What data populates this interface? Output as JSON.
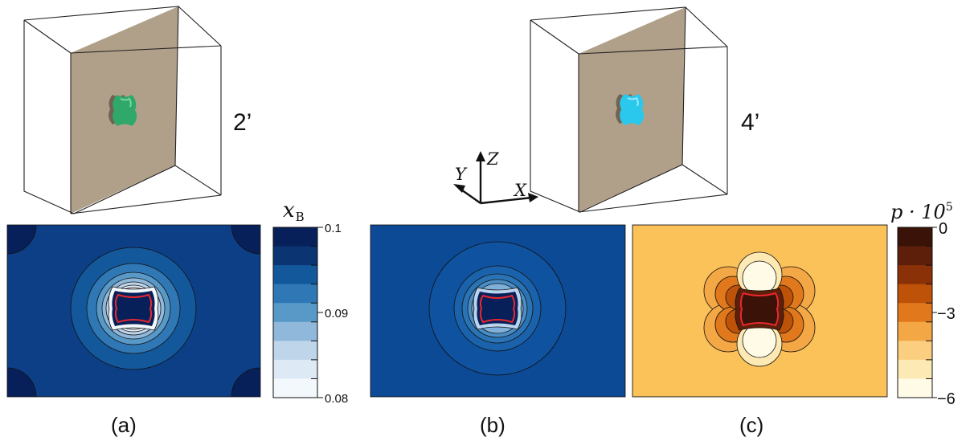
{
  "labels": {
    "view_a": "2’",
    "view_b": "4’",
    "panel_a": "(a)",
    "panel_b": "(b)",
    "panel_c": "(c)"
  },
  "axes_triad": {
    "x": "X",
    "y": "Y",
    "z": "Z"
  },
  "colorbar_xb": {
    "symbol": "x",
    "subscript": "B",
    "ticks": [
      "0.1",
      "0.09",
      "0.08"
    ],
    "colors": [
      "#08205a",
      "#0b3473",
      "#14589c",
      "#2f78b5",
      "#5899c8",
      "#8fb8da",
      "#bed5ea",
      "#dde9f4",
      "#f3f8fc"
    ]
  },
  "colorbar_p": {
    "symbol": "p · 10",
    "exponent": "5",
    "ticks": [
      "0",
      "−3",
      "−6"
    ],
    "colors": [
      "#3a1208",
      "#5e1f0a",
      "#8a3108",
      "#bd5208",
      "#e1791c",
      "#f4a745",
      "#fccf80",
      "#fde9b3",
      "#fffbe6"
    ]
  },
  "colors": {
    "plane": "#a08b6f",
    "inclusion_a": "#2fa86a",
    "inclusion_b": "#29c8ec",
    "interface": "#e8282e",
    "map_a_bg": "#0d3f87",
    "map_b_bg": "#0c4a95",
    "map_c_bg": "#fcc25a"
  }
}
